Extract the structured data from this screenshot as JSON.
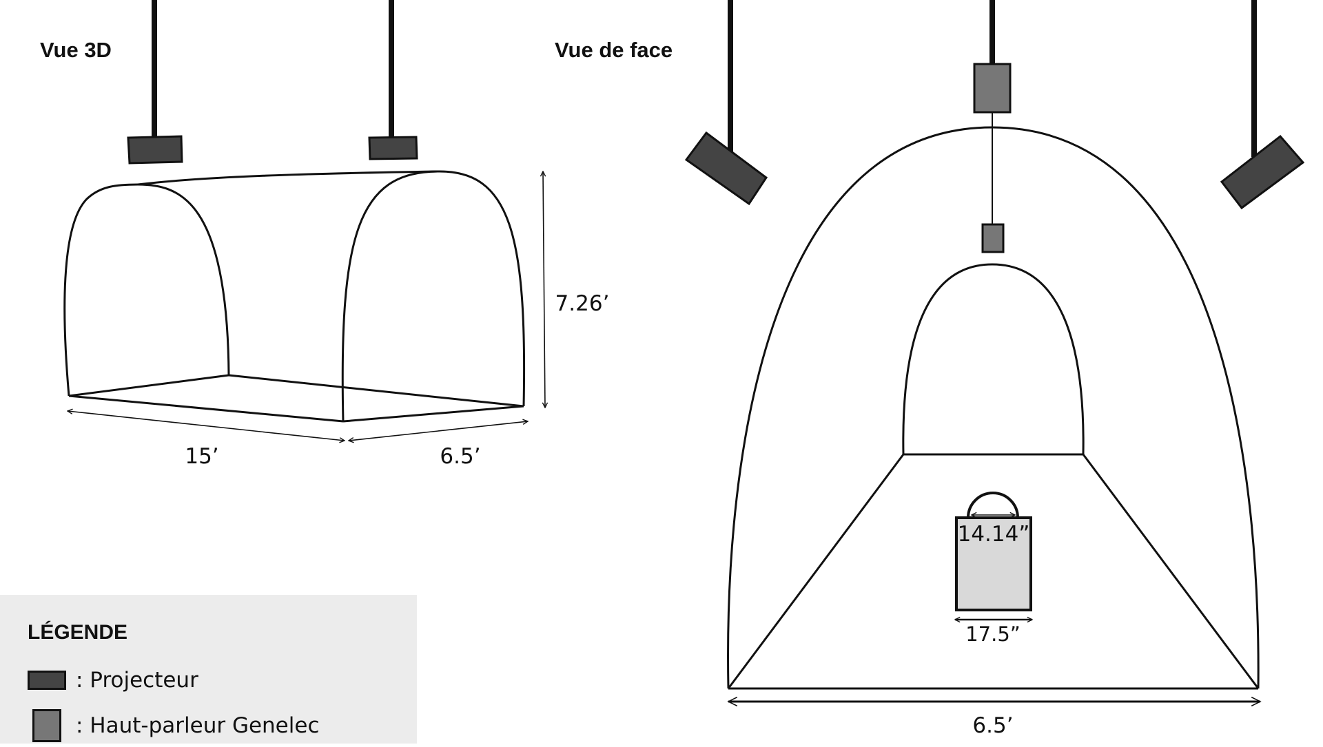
{
  "titles": {
    "view_3d": "Vue 3D",
    "view_front": "Vue de face"
  },
  "dimensions_3d": {
    "length": "15’",
    "depth": "6.5’",
    "height": "7.26’"
  },
  "dimensions_front": {
    "width": "6.5’",
    "object_height": "14.14”",
    "object_width": "17.5”"
  },
  "legend": {
    "title": "LÉGENDE",
    "items": [
      {
        "label": ": Projecteur",
        "icon": "projector-swatch",
        "color": "#444444"
      },
      {
        "label": ": Haut-parleur Genelec",
        "icon": "speaker-swatch",
        "color": "#777777"
      }
    ]
  },
  "colors": {
    "projector": "#444444",
    "speaker": "#777777",
    "object_fill": "#d9d9d9",
    "legend_bg": "#ececec",
    "stroke": "#111111"
  }
}
